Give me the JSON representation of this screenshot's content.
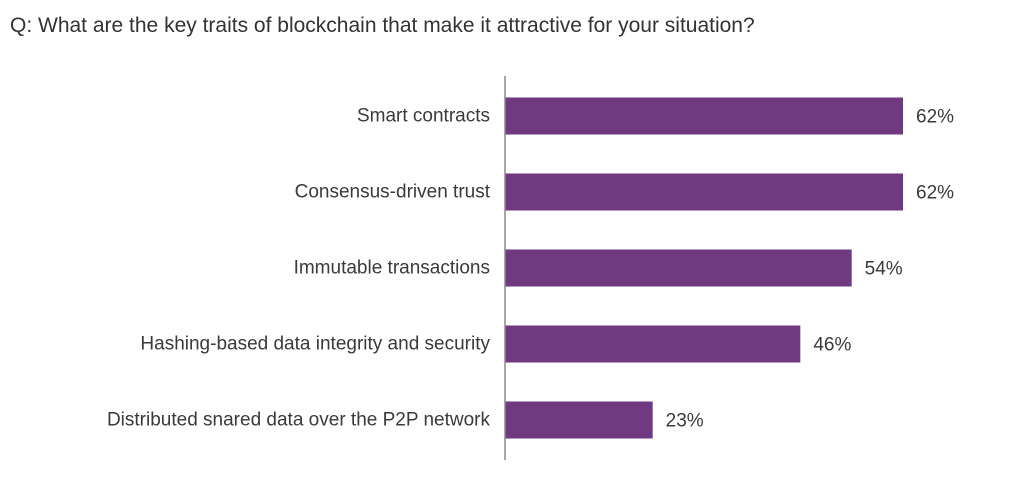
{
  "chart_data": {
    "type": "bar",
    "orientation": "horizontal",
    "title": "Q: What are the key traits of blockchain that make it attractive for your situation?",
    "categories": [
      "Smart contracts",
      "Consensus-driven trust",
      "Immutable transactions",
      "Hashing-based data integrity and security",
      "Distributed snared data over the P2P network"
    ],
    "values": [
      62,
      62,
      54,
      46,
      23
    ],
    "value_labels": [
      "62%",
      "62%",
      "54%",
      "46%",
      "23%"
    ],
    "unit": "%",
    "xlim": [
      0,
      100
    ],
    "grid": false,
    "legend": "none",
    "bar_color": "#6f3a80",
    "axis_color": "#8a8a8a"
  }
}
